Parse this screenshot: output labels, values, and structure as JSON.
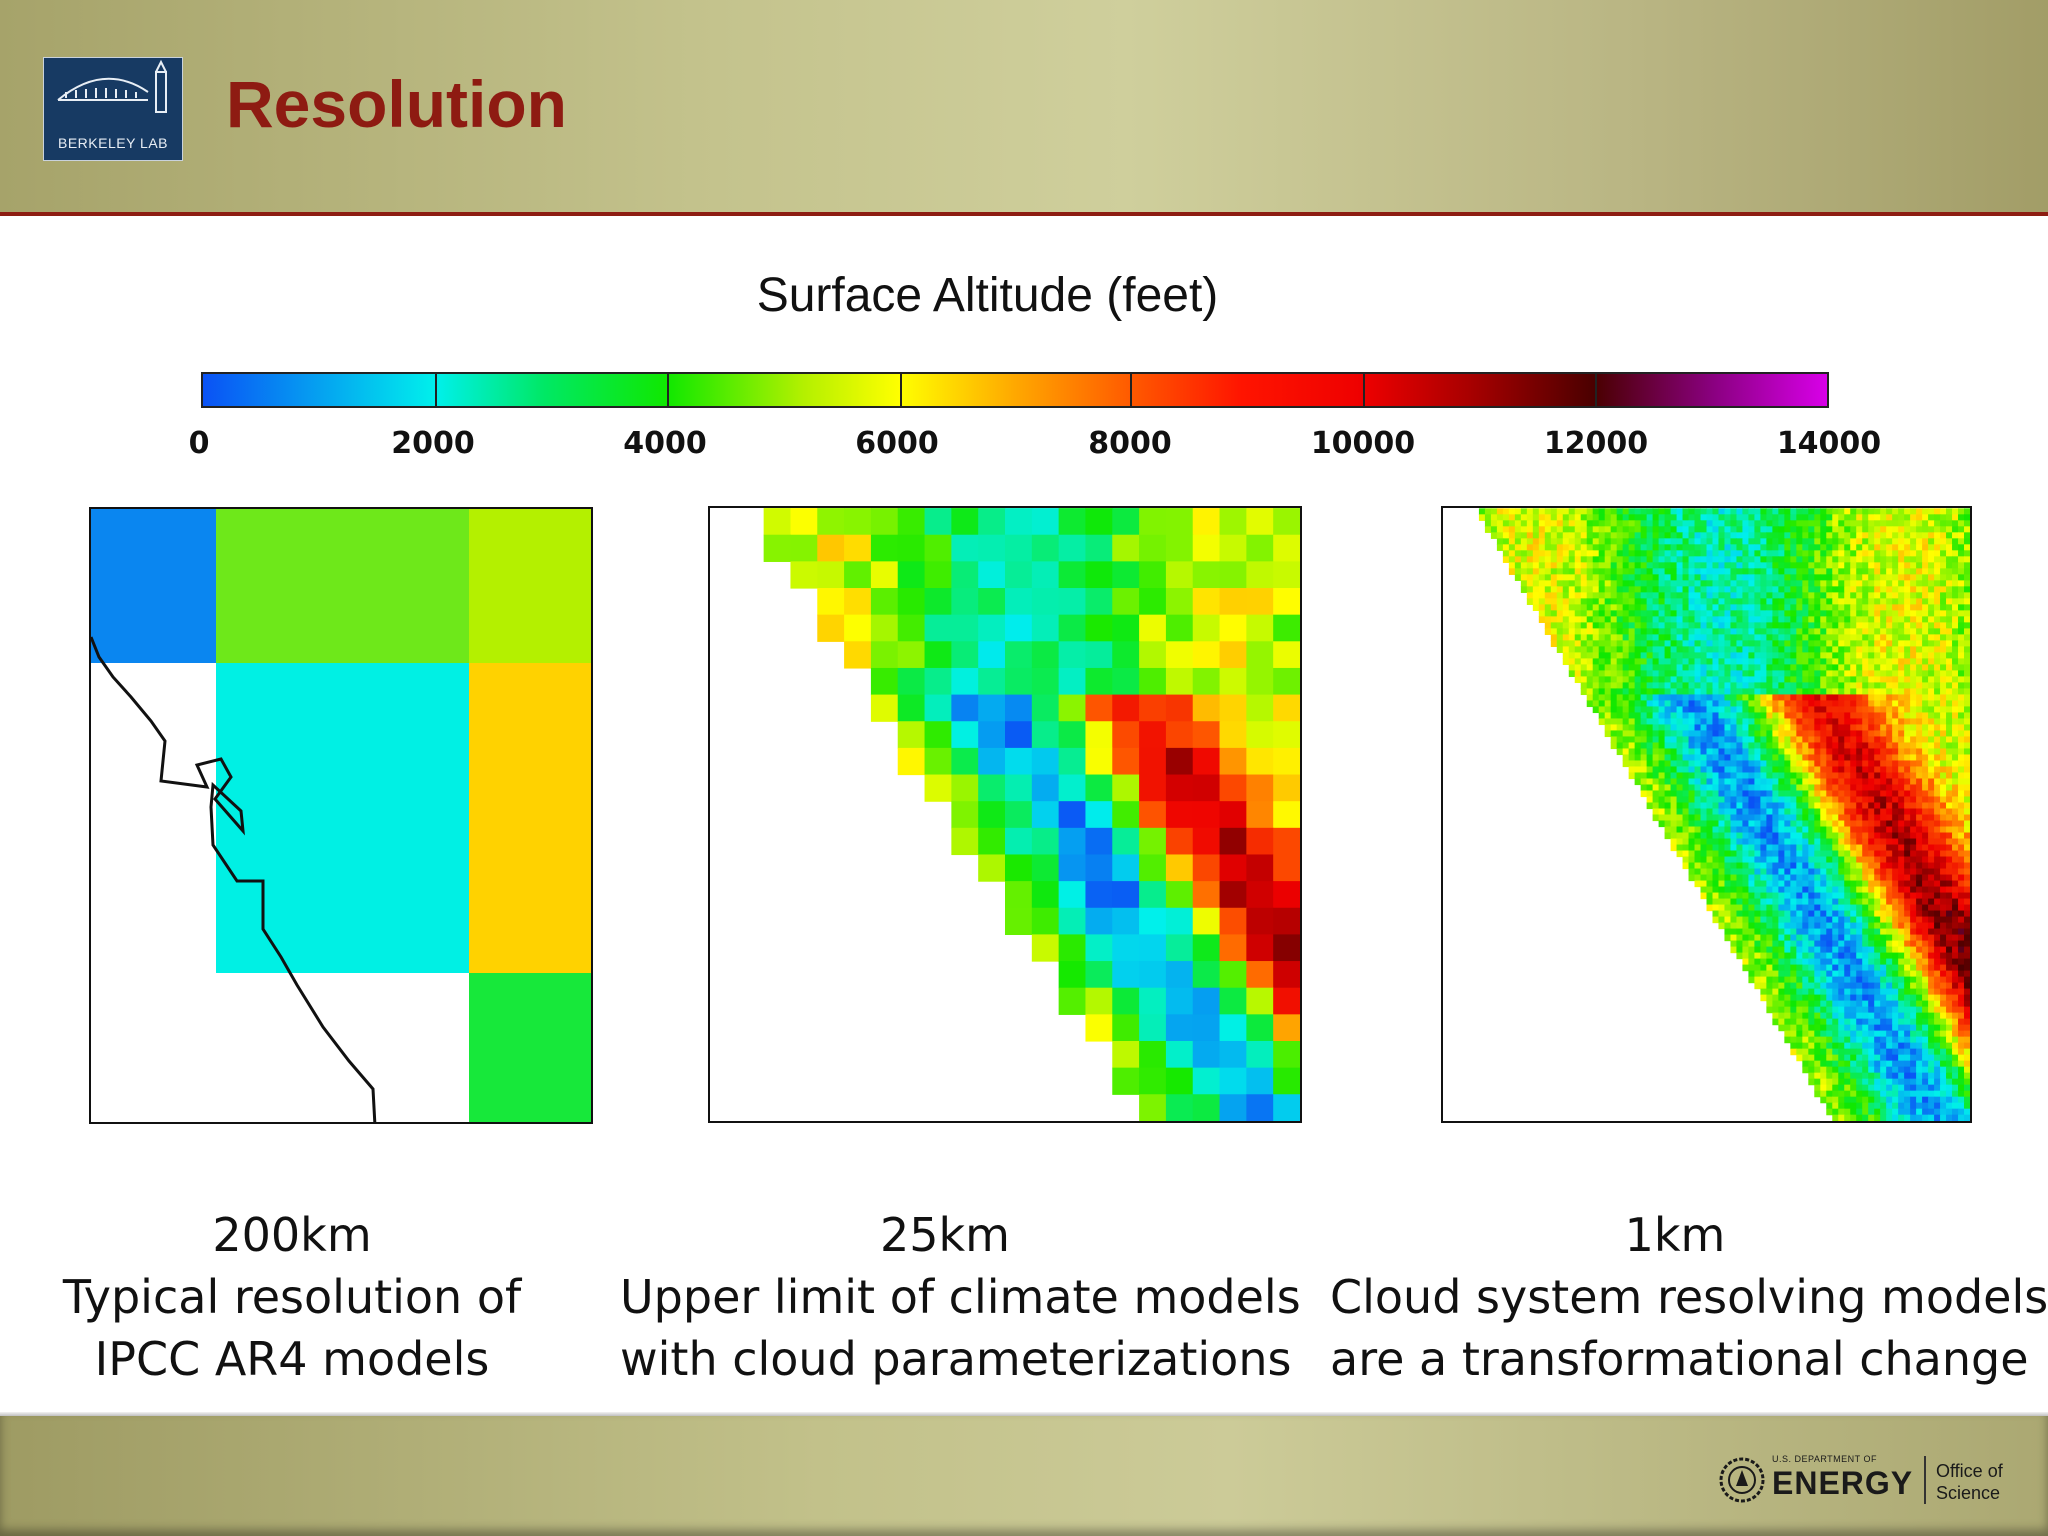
{
  "header": {
    "title": "Resolution",
    "logo_text": "BERKELEY LAB"
  },
  "colorbar": {
    "title": "Surface Altitude (feet)",
    "ticks": [
      "0",
      "2000",
      "4000",
      "6000",
      "8000",
      "10000",
      "12000",
      "14000"
    ]
  },
  "panels": [
    {
      "caption": [
        "200km",
        "Typical resolution of",
        "IPCC AR4 models"
      ]
    },
    {
      "caption": [
        "25km",
        "Upper limit of climate models",
        "with cloud parameterizations"
      ]
    },
    {
      "caption": [
        "1km",
        "Cloud system resolving models",
        "are a transformational change"
      ]
    }
  ],
  "footer": {
    "doe_small": "U.S. DEPARTMENT OF",
    "doe_big": "ENERGY",
    "office_line1": "Office of",
    "office_line2": "Science"
  }
}
